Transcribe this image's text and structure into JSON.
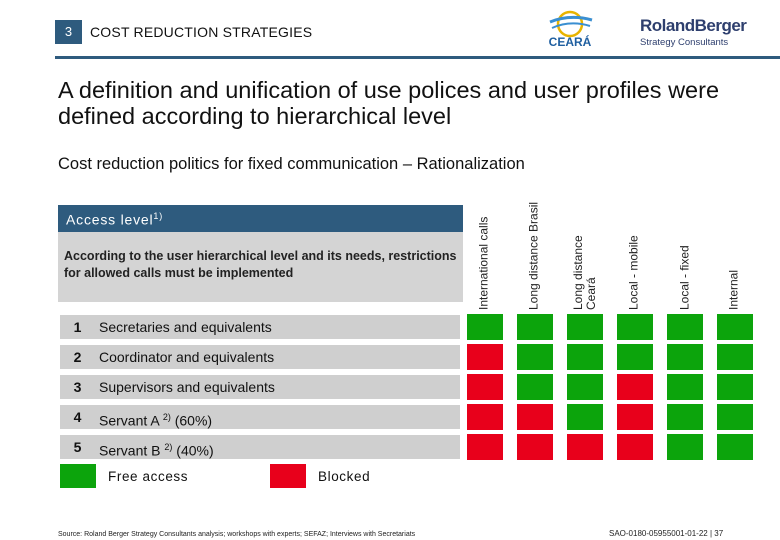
{
  "header": {
    "section_number": "3",
    "section_title": "COST REDUCTION STRATEGIES",
    "logo_ceara": "CEARÁ",
    "logo_rb_name": "RolandBerger",
    "logo_rb_sub": "Strategy Consultants"
  },
  "headline": "A definition and unification of use polices and user profiles were defined according to hierarchical level",
  "subheadline": "Cost reduction politics for fixed communication – Rationalization",
  "access": {
    "label": "Access level",
    "label_sup": "1)",
    "description": "According to the user hierarchical level and its needs, restrictions for allowed calls must be implemented"
  },
  "columns": [
    "International calls",
    "Long distance Brasil",
    "Long distance Ceará",
    "Local - mobile",
    "Local - fixed",
    "Internal"
  ],
  "rows": [
    {
      "num": "1",
      "label": "Secretaries and equivalents",
      "sup": "",
      "pct": "",
      "access": [
        "free",
        "free",
        "free",
        "free",
        "free",
        "free"
      ]
    },
    {
      "num": "2",
      "label": "Coordinator and equivalents",
      "sup": "",
      "pct": "",
      "access": [
        "blocked",
        "free",
        "free",
        "free",
        "free",
        "free"
      ]
    },
    {
      "num": "3",
      "label": "Supervisors and equivalents",
      "sup": "",
      "pct": "",
      "access": [
        "blocked",
        "free",
        "free",
        "blocked",
        "free",
        "free"
      ]
    },
    {
      "num": "4",
      "label": "Servant A",
      "sup": "2)",
      "pct": "(60%)",
      "access": [
        "blocked",
        "blocked",
        "free",
        "blocked",
        "free",
        "free"
      ]
    },
    {
      "num": "5",
      "label": "Servant B",
      "sup": "2)",
      "pct": "(40%)",
      "access": [
        "blocked",
        "blocked",
        "blocked",
        "blocked",
        "free",
        "free"
      ]
    }
  ],
  "legend": {
    "free_label": "Free access",
    "blocked_label": "Blocked"
  },
  "colors": {
    "free": "#0ca40c",
    "blocked": "#e8001b",
    "accent": "#2e5b7e"
  },
  "footer": {
    "source": "Source: Roland Berger Strategy Consultants analysis; workshops with experts; SEFAZ; Interviews with Secretariats",
    "code": "SAO-0180-05955001-01-22  |  37"
  }
}
